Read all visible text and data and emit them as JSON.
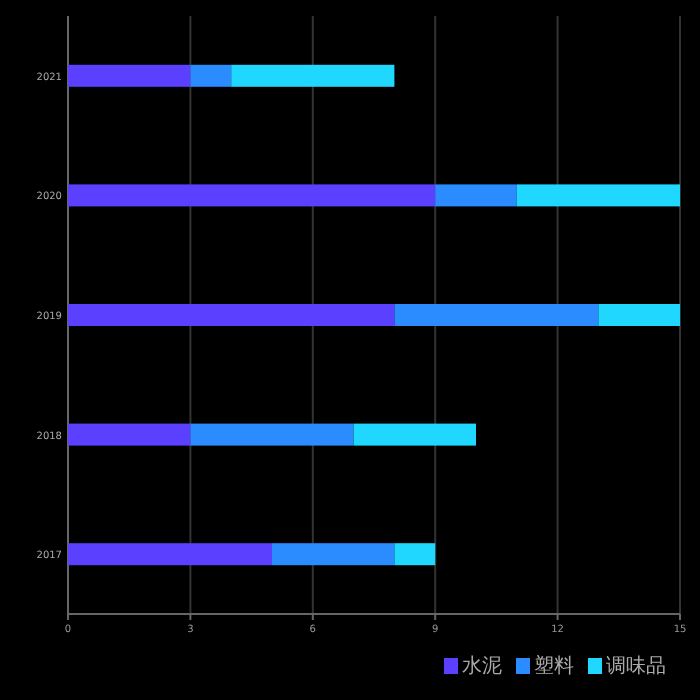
{
  "chart_data": {
    "type": "bar",
    "orientation": "horizontal",
    "stacked": true,
    "categories": [
      "2021",
      "2020",
      "2019",
      "2018",
      "2017"
    ],
    "series": [
      {
        "name": "水泥",
        "color": "#5b40ff",
        "values": [
          3,
          9,
          8,
          3,
          5
        ]
      },
      {
        "name": "塑料",
        "color": "#2a8cff",
        "values": [
          1,
          2,
          5,
          4,
          3
        ]
      },
      {
        "name": "调味品",
        "color": "#20d8ff",
        "values": [
          4,
          4,
          2,
          3,
          1
        ]
      }
    ],
    "xlim": [
      0,
      15
    ],
    "xticks": [
      0,
      3,
      6,
      9,
      12,
      15
    ],
    "grid": "x",
    "legend": "bottom right"
  }
}
